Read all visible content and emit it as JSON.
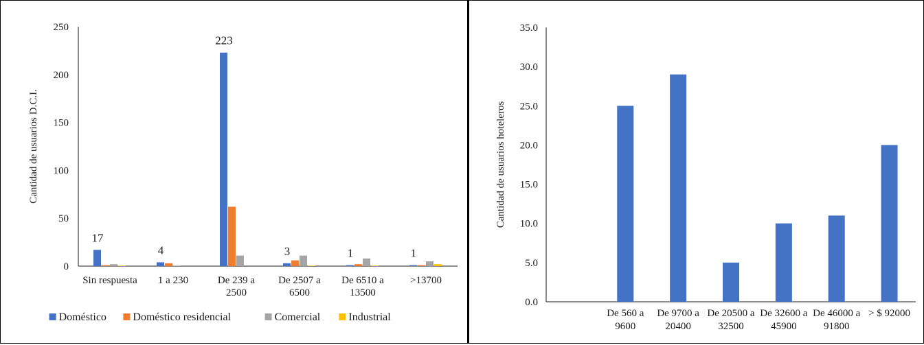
{
  "chart_data": [
    {
      "type": "bar",
      "title": "",
      "xlabel": "",
      "ylabel": "Cantidad de usuarios D.C.I.",
      "ylim": [
        0,
        250
      ],
      "yticks": [
        "0",
        "50",
        "100",
        "150",
        "200",
        "250"
      ],
      "grid": false,
      "legend_position": "bottom",
      "categories": [
        [
          "Sin respuesta"
        ],
        [
          "1 a 230"
        ],
        [
          "De 239 a",
          "2500"
        ],
        [
          "De 2507 a",
          "6500"
        ],
        [
          "De 6510 a",
          "13500"
        ],
        [
          ">13700"
        ]
      ],
      "series": [
        {
          "name": "Doméstico",
          "color": "#4472C4",
          "values": [
            17,
            4,
            223,
            3,
            1,
            1
          ]
        },
        {
          "name": "Doméstico residencial",
          "color": "#ED7D31",
          "values": [
            1,
            3,
            62,
            6,
            2,
            1
          ]
        },
        {
          "name": "Comercial",
          "color": "#A5A5A5",
          "values": [
            2,
            0.5,
            11,
            11,
            8,
            5
          ]
        },
        {
          "name": "Industrial",
          "color": "#FFC000",
          "values": [
            0.5,
            0,
            0,
            0.5,
            0.5,
            2
          ]
        }
      ],
      "data_labels": [
        {
          "category_index": 0,
          "text": "17"
        },
        {
          "category_index": 1,
          "text": "4"
        },
        {
          "category_index": 2,
          "text": "223"
        },
        {
          "category_index": 3,
          "text": "3"
        },
        {
          "category_index": 4,
          "text": "1"
        },
        {
          "category_index": 5,
          "text": "1"
        }
      ]
    },
    {
      "type": "bar",
      "title": "",
      "xlabel": "",
      "ylabel": "Cantidad de usuarios hoteleros",
      "ylim": [
        0,
        35
      ],
      "yticks": [
        "0.0",
        "5.0",
        "10.0",
        "15.0",
        "20.0",
        "25.0",
        "30.0",
        "35.0"
      ],
      "grid": false,
      "color": "#4472C4",
      "categories": [
        [
          ""
        ],
        [
          "De 560 a",
          "9600"
        ],
        [
          "De 9700 a",
          "20400"
        ],
        [
          "De 20500 a",
          "32500"
        ],
        [
          "De 32600 a",
          "45900"
        ],
        [
          "De 46000 a",
          "91800"
        ],
        [
          "> $ 92000"
        ]
      ],
      "values": [
        0,
        25,
        29,
        5,
        10,
        11,
        20
      ]
    }
  ]
}
